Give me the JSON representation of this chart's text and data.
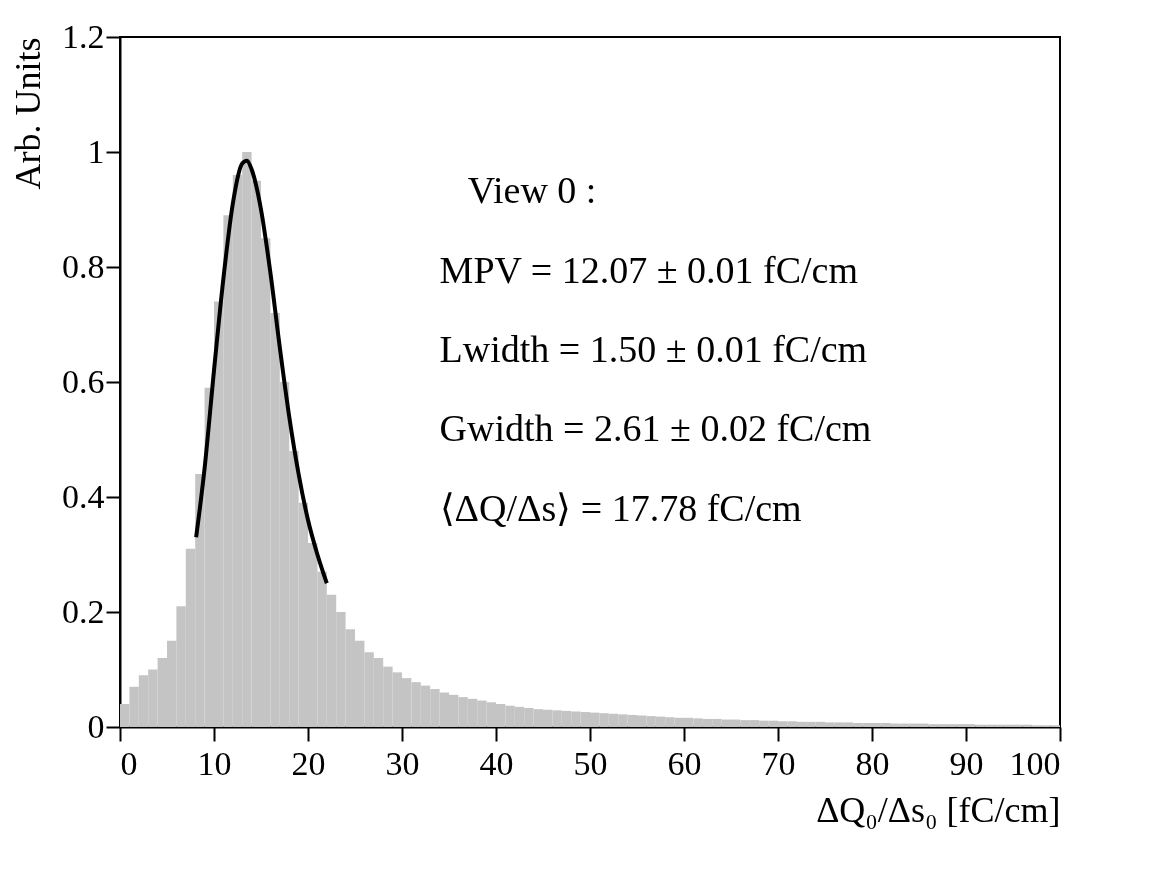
{
  "chart_data": {
    "type": "histogram",
    "xlabel": "ΔQ₀/Δs₀ [fC/cm]",
    "ylabel": "Arb. Units",
    "xlim": [
      0,
      100
    ],
    "ylim": [
      0,
      1.2
    ],
    "xticks": [
      0,
      10,
      20,
      30,
      40,
      50,
      60,
      70,
      80,
      90,
      100
    ],
    "yticks": [
      0,
      0.2,
      0.4,
      0.6,
      0.8,
      1,
      1.2
    ],
    "grid": false,
    "annotations": [
      "View 0 :",
      "MPV = 12.07 ± 0.01 fC/cm",
      "Lwidth = 1.50 ± 0.01 fC/cm",
      "Gwidth = 2.61 ± 0.02 fC/cm",
      "⟨ΔQ/Δs⟩ = 17.78 fC/cm"
    ],
    "series": [
      {
        "color": "#c4c4c4",
        "bins": [
          0,
          1,
          2,
          3,
          4,
          5,
          6,
          7,
          8,
          9,
          10,
          11,
          12,
          13,
          14,
          15,
          16,
          17,
          18,
          19,
          20,
          21,
          22,
          23,
          24,
          25,
          26,
          27,
          28,
          29,
          30,
          31,
          32,
          33,
          34,
          35,
          36,
          37,
          38,
          39,
          40,
          41,
          42,
          43,
          44,
          45,
          46,
          47,
          48,
          49,
          50,
          51,
          52,
          53,
          54,
          55,
          56,
          57,
          58,
          59,
          60,
          61,
          62,
          63,
          64,
          65,
          66,
          67,
          68,
          69,
          70,
          71,
          72,
          73,
          74,
          75,
          76,
          77,
          78,
          79,
          80,
          81,
          82,
          83,
          84,
          85,
          86,
          87,
          88,
          89,
          90,
          91,
          92,
          93,
          94,
          95,
          96,
          97,
          98,
          99,
          100
        ],
        "values": [
          0.04,
          0.07,
          0.09,
          0.1,
          0.12,
          0.15,
          0.21,
          0.31,
          0.44,
          0.59,
          0.74,
          0.89,
          0.96,
          1.0,
          0.95,
          0.85,
          0.72,
          0.6,
          0.48,
          0.39,
          0.32,
          0.27,
          0.23,
          0.2,
          0.17,
          0.15,
          0.13,
          0.12,
          0.105,
          0.095,
          0.085,
          0.078,
          0.072,
          0.066,
          0.06,
          0.056,
          0.052,
          0.049,
          0.046,
          0.043,
          0.04,
          0.037,
          0.035,
          0.033,
          0.031,
          0.03,
          0.029,
          0.028,
          0.027,
          0.026,
          0.025,
          0.024,
          0.023,
          0.022,
          0.021,
          0.02,
          0.019,
          0.018,
          0.017,
          0.016,
          0.016,
          0.015,
          0.014,
          0.014,
          0.013,
          0.013,
          0.012,
          0.012,
          0.011,
          0.011,
          0.01,
          0.01,
          0.009,
          0.009,
          0.009,
          0.008,
          0.008,
          0.008,
          0.007,
          0.007,
          0.007,
          0.007,
          0.006,
          0.006,
          0.006,
          0.006,
          0.005,
          0.005,
          0.005,
          0.005,
          0.005,
          0.004,
          0.004,
          0.004,
          0.004,
          0.004,
          0.004,
          0.003,
          0.003,
          0.003
        ]
      },
      {
        "type": "line",
        "color": "#000000",
        "x": [
          8.1,
          9,
          10,
          11,
          12,
          13,
          13.5,
          14,
          15,
          16,
          17,
          18,
          19,
          20,
          21,
          22
        ],
        "values": [
          0.33,
          0.45,
          0.62,
          0.78,
          0.91,
          0.98,
          0.985,
          0.97,
          0.9,
          0.79,
          0.66,
          0.54,
          0.44,
          0.36,
          0.3,
          0.25
        ]
      }
    ]
  }
}
